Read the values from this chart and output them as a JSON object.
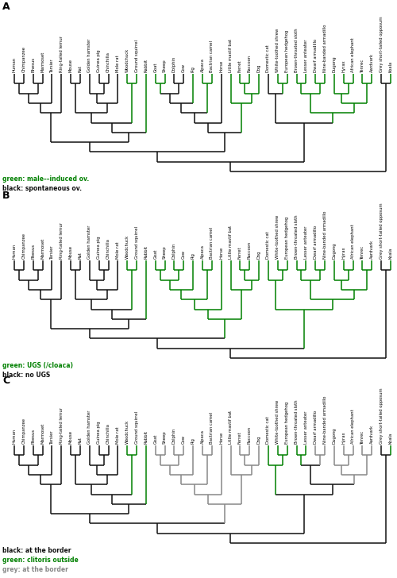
{
  "taxa": [
    "Human",
    "Chimpanzee",
    "Rhesus",
    "Marmoset",
    "Tarsier",
    "Ring-tailed lemur",
    "Mouse",
    "Rat",
    "Golden hamster",
    "Guinea pig",
    "Chinchilla",
    "Mole rat",
    "Woodchuck",
    "Ground squirrel",
    "Rabbit",
    "Goat",
    "Sheep",
    "Dolphin",
    "Cow",
    "Pig",
    "Alpaca",
    "Bactrian camel",
    "Horse",
    "Little mastif bat",
    "Ferret",
    "Raccoon",
    "Dog",
    "Domestic cat",
    "White-toothed shrew",
    "European hedgehog",
    "Brown-throated sloth",
    "Lesser anteater",
    "Dwarf armadillo",
    "Nine-banded armadillo",
    "Dugong",
    "Hyrax",
    "African elephant",
    "Tenrec",
    "Aardvark",
    "Grey short-tailed opposum",
    "Koala"
  ],
  "panel_A_colors": [
    "black",
    "black",
    "black",
    "black",
    "black",
    "black",
    "black",
    "black",
    "black",
    "black",
    "black",
    "black",
    "green",
    "green",
    "green",
    "green",
    "green",
    "black",
    "black",
    "green",
    "green",
    "green",
    "black",
    "green",
    "green",
    "green",
    "green",
    "black",
    "green",
    "green",
    "green",
    "green",
    "green",
    "green",
    "green",
    "green",
    "green",
    "green",
    "green",
    "black",
    "green"
  ],
  "panel_B_colors": [
    "black",
    "black",
    "black",
    "black",
    "black",
    "black",
    "black",
    "black",
    "black",
    "black",
    "black",
    "black",
    "green",
    "green",
    "green",
    "green",
    "green",
    "green",
    "green",
    "green",
    "green",
    "green",
    "green",
    "green",
    "green",
    "green",
    "green",
    "green",
    "green",
    "green",
    "green",
    "green",
    "green",
    "green",
    "green",
    "green",
    "green",
    "green",
    "green",
    "black",
    "green"
  ],
  "panel_C_colors": [
    "black",
    "black",
    "black",
    "black",
    "black",
    "black",
    "black",
    "black",
    "black",
    "black",
    "black",
    "black",
    "green",
    "green",
    "green",
    "gray",
    "gray",
    "gray",
    "gray",
    "gray",
    "gray",
    "gray",
    "gray",
    "gray",
    "gray",
    "gray",
    "gray",
    "green",
    "green",
    "green",
    "green",
    "green",
    "gray",
    "gray",
    "gray",
    "gray",
    "gray",
    "gray",
    "gray",
    "black",
    "green"
  ],
  "green_color": "#008000",
  "gray_color": "#888888",
  "black_color": "#111111"
}
